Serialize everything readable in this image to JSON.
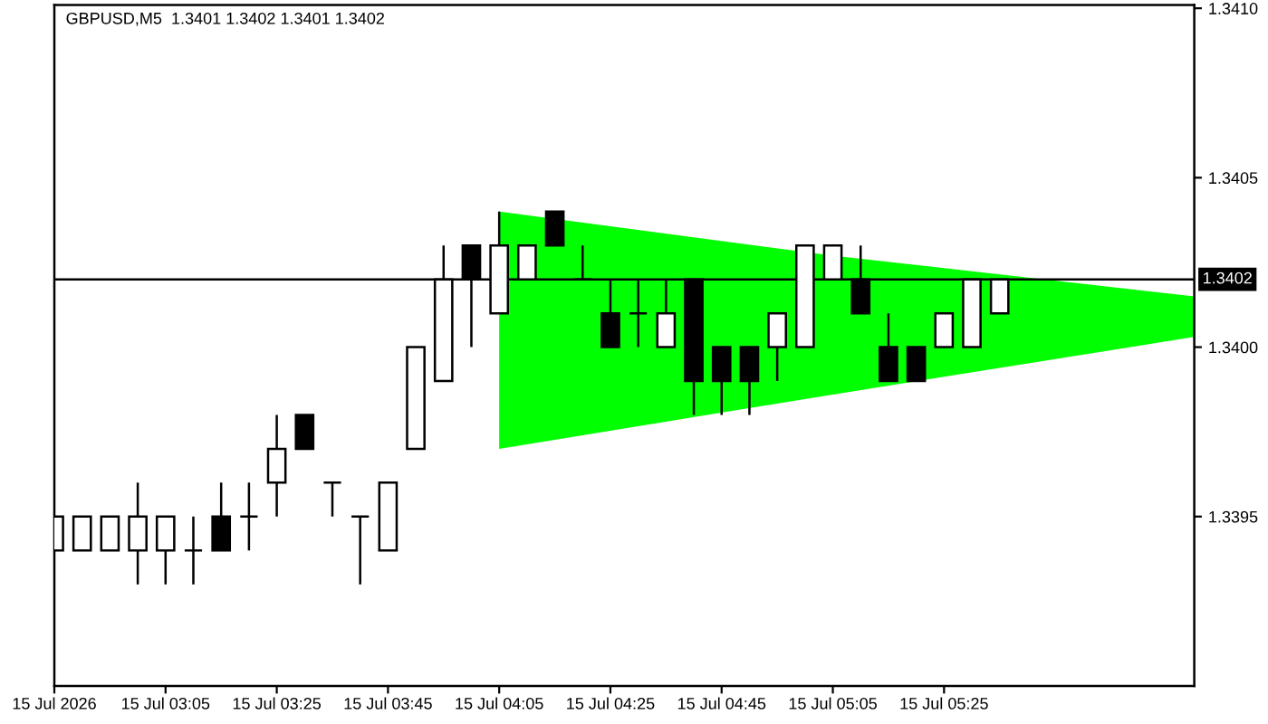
{
  "chart_data": {
    "type": "candlestick",
    "title": "GBPUSD,M5  1.3401 1.3402 1.3401 1.3402",
    "x": [
      "2026-07-15T02:45",
      "2026-07-15T02:50",
      "2026-07-15T02:55",
      "2026-07-15T03:00",
      "2026-07-15T03:05",
      "2026-07-15T03:10",
      "2026-07-15T03:15",
      "2026-07-15T03:20",
      "2026-07-15T03:25",
      "2026-07-15T03:30",
      "2026-07-15T03:35",
      "2026-07-15T03:40",
      "2026-07-15T03:45",
      "2026-07-15T03:50",
      "2026-07-15T03:55",
      "2026-07-15T04:00",
      "2026-07-15T04:05",
      "2026-07-15T04:10",
      "2026-07-15T04:15",
      "2026-07-15T04:20",
      "2026-07-15T04:25",
      "2026-07-15T04:30",
      "2026-07-15T04:35",
      "2026-07-15T04:40",
      "2026-07-15T04:45",
      "2026-07-15T04:50",
      "2026-07-15T04:55",
      "2026-07-15T05:00",
      "2026-07-15T05:05",
      "2026-07-15T05:10",
      "2026-07-15T05:15",
      "2026-07-15T05:20",
      "2026-07-15T05:25",
      "2026-07-15T05:30",
      "2026-07-15T05:35"
    ],
    "ohlc": [
      [
        1.3394,
        1.3395,
        1.3394,
        1.3395
      ],
      [
        1.3394,
        1.3395,
        1.3394,
        1.3395
      ],
      [
        1.3394,
        1.3395,
        1.3394,
        1.3395
      ],
      [
        1.3394,
        1.3396,
        1.3393,
        1.3395
      ],
      [
        1.3394,
        1.3395,
        1.3393,
        1.3395
      ],
      [
        1.3394,
        1.3395,
        1.3393,
        1.3394
      ],
      [
        1.3395,
        1.3396,
        1.3394,
        1.3394
      ],
      [
        1.3395,
        1.3396,
        1.3394,
        1.3395
      ],
      [
        1.3396,
        1.3398,
        1.3395,
        1.3397
      ],
      [
        1.3398,
        1.3398,
        1.3397,
        1.3397
      ],
      [
        1.3396,
        1.3396,
        1.3395,
        1.3396
      ],
      [
        1.3395,
        1.3395,
        1.3393,
        1.3395
      ],
      [
        1.3394,
        1.3396,
        1.3394,
        1.3396
      ],
      [
        1.3397,
        1.34,
        1.3397,
        1.34
      ],
      [
        1.3399,
        1.3403,
        1.3399,
        1.3402
      ],
      [
        1.3403,
        1.3403,
        1.34,
        1.3402
      ],
      [
        1.3401,
        1.3404,
        1.3401,
        1.3403
      ],
      [
        1.3402,
        1.3403,
        1.3402,
        1.3403
      ],
      [
        1.3404,
        1.3404,
        1.3403,
        1.3403
      ],
      [
        1.3402,
        1.3403,
        1.3402,
        1.3402
      ],
      [
        1.3401,
        1.3402,
        1.34,
        1.34
      ],
      [
        1.3401,
        1.3402,
        1.34,
        1.3401
      ],
      [
        1.34,
        1.3402,
        1.34,
        1.3401
      ],
      [
        1.3402,
        1.3402,
        1.3398,
        1.3399
      ],
      [
        1.34,
        1.34,
        1.3398,
        1.3399
      ],
      [
        1.34,
        1.34,
        1.3398,
        1.3399
      ],
      [
        1.34,
        1.3401,
        1.3399,
        1.3401
      ],
      [
        1.34,
        1.3403,
        1.34,
        1.3403
      ],
      [
        1.3402,
        1.3403,
        1.3402,
        1.3403
      ],
      [
        1.3402,
        1.3403,
        1.3401,
        1.3401
      ],
      [
        1.34,
        1.3401,
        1.3399,
        1.3399
      ],
      [
        1.34,
        1.34,
        1.3399,
        1.3399
      ],
      [
        1.34,
        1.3401,
        1.34,
        1.3401
      ],
      [
        1.34,
        1.3402,
        1.34,
        1.3402
      ],
      [
        1.3401,
        1.3402,
        1.3401,
        1.3402
      ]
    ],
    "colors": [
      "#ffffff",
      "#ffffff",
      "#ffffff",
      "#ffffff",
      "#ffffff",
      "#000000",
      "#000000",
      "#000000",
      "#ffffff",
      "#000000",
      "#000000",
      "#000000",
      "#ffffff",
      "#ffffff",
      "#ffffff",
      "#000000",
      "#ffffff",
      "#ffffff",
      "#000000",
      "#000000",
      "#000000",
      "#000000",
      "#ffffff",
      "#000000",
      "#000000",
      "#000000",
      "#ffffff",
      "#ffffff",
      "#ffffff",
      "#000000",
      "#000000",
      "#000000",
      "#ffffff",
      "#ffffff",
      "#ffffff"
    ],
    "series": [
      {
        "type": "area",
        "color": "#00ff00",
        "x": [
          "2026-07-15T04:05",
          "2026-07-15T05:05",
          "2026-07-15T06:10"
        ],
        "values": [
          null,
          null,
          null
        ],
        "lower": [
          1.3397,
          1.33986,
          1.34003
        ],
        "upper": [
          1.3404,
          1.34027,
          1.34015
        ]
      }
    ],
    "ref_lines": [
      {
        "axis": "y",
        "value": 1.3402,
        "label": "1.3402",
        "color": "#000000"
      }
    ],
    "xlim": [
      "2026-07-15T02:45",
      "2026-07-15T06:10"
    ],
    "xticks": [
      {
        "value": "2026-07-15T02:45",
        "label": "15 Jul 2026"
      },
      {
        "value": "2026-07-15T03:05",
        "label": "15 Jul 03:05"
      },
      {
        "value": "2026-07-15T03:25",
        "label": "15 Jul 03:25"
      },
      {
        "value": "2026-07-15T03:45",
        "label": "15 Jul 03:45"
      },
      {
        "value": "2026-07-15T04:05",
        "label": "15 Jul 04:05"
      },
      {
        "value": "2026-07-15T04:25",
        "label": "15 Jul 04:25"
      },
      {
        "value": "2026-07-15T04:45",
        "label": "15 Jul 04:45"
      },
      {
        "value": "2026-07-15T05:05",
        "label": "15 Jul 05:05"
      },
      {
        "value": "2026-07-15T05:25",
        "label": "15 Jul 05:25"
      }
    ],
    "ylim": [
      1.339,
      1.34101
    ],
    "yticks": [
      1.3395,
      {
        "value": 1.34,
        "label": "1.3400"
      },
      1.3405,
      {
        "value": 1.341,
        "label": "1.3410"
      }
    ],
    "grid": false,
    "legend": false
  }
}
